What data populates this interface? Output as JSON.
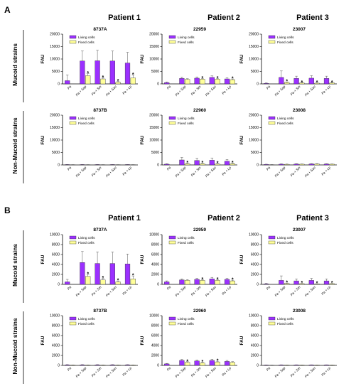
{
  "colors": {
    "living": "#9b30ff",
    "fixed": "#ffff99",
    "axis": "#000000",
    "error": "#555555"
  },
  "legend": {
    "living": "Living cells",
    "fixed": "Fixed cells"
  },
  "ylabel": "FAU",
  "categories": [
    "Pa",
    "Pa + Sap",
    "Pa + Sm",
    "Pa + Sau",
    "Pa + Lp"
  ],
  "patients": [
    "Patient 1",
    "Patient 2",
    "Patient 3"
  ],
  "chart_data": [
    {
      "type": "bar",
      "section": "A",
      "row_label": "Mucoid strains",
      "panels": [
        {
          "title": "8737A",
          "ylim": [
            0,
            20000
          ],
          "yticks": [
            0,
            5000,
            10000,
            15000,
            20000
          ],
          "series": [
            {
              "name": "Living cells",
              "values": [
                1300,
                9200,
                9300,
                9200,
                8400
              ],
              "errors": [
                2300,
                4000,
                4200,
                4000,
                4300
              ]
            },
            {
              "name": "Fixed cells",
              "values": [
                0,
                3300,
                2000,
                700,
                2400
              ],
              "errors": [
                0,
                800,
                500,
                300,
                1200
              ]
            }
          ],
          "stars": [
            false,
            true,
            true,
            true,
            true
          ]
        },
        {
          "title": "22959",
          "ylim": [
            0,
            20000
          ],
          "yticks": [
            0,
            5000,
            10000,
            15000,
            20000
          ],
          "series": [
            {
              "name": "Living cells",
              "values": [
                500,
                2200,
                2300,
                2600,
                2000
              ],
              "errors": [
                300,
                500,
                500,
                600,
                500
              ]
            },
            {
              "name": "Fixed cells",
              "values": [
                0,
                1800,
                1900,
                1900,
                1700
              ],
              "errors": [
                0,
                300,
                300,
                300,
                300
              ]
            }
          ],
          "stars": [
            false,
            false,
            true,
            true,
            true
          ]
        },
        {
          "title": "23007",
          "ylim": [
            0,
            20000
          ],
          "yticks": [
            0,
            5000,
            10000,
            15000,
            20000
          ],
          "series": [
            {
              "name": "Living cells",
              "values": [
                200,
                2600,
                2200,
                2300,
                2200
              ],
              "errors": [
                200,
                2600,
                900,
                1000,
                900
              ]
            },
            {
              "name": "Fixed cells",
              "values": [
                0,
                600,
                400,
                300,
                400
              ],
              "errors": [
                0,
                200,
                100,
                100,
                100
              ]
            }
          ],
          "stars": [
            false,
            true,
            true,
            true,
            true
          ]
        }
      ]
    },
    {
      "type": "bar",
      "section": "A",
      "row_label": "Non-Mucoid strains",
      "panels": [
        {
          "title": "8737B",
          "ylim": [
            0,
            20000
          ],
          "yticks": [
            0,
            5000,
            10000,
            15000,
            20000
          ],
          "series": [
            {
              "name": "Living cells",
              "values": [
                150,
                150,
                150,
                150,
                150
              ],
              "errors": [
                50,
                50,
                50,
                50,
                50
              ]
            },
            {
              "name": "Fixed cells",
              "values": [
                100,
                100,
                100,
                100,
                100
              ],
              "errors": [
                30,
                30,
                30,
                30,
                30
              ]
            }
          ],
          "stars": [
            false,
            false,
            false,
            false,
            false
          ]
        },
        {
          "title": "22960",
          "ylim": [
            0,
            20000
          ],
          "yticks": [
            0,
            5000,
            10000,
            15000,
            20000
          ],
          "series": [
            {
              "name": "Living cells",
              "values": [
                300,
                2000,
                1800,
                1900,
                1500
              ],
              "errors": [
                200,
                1000,
                900,
                900,
                700
              ]
            },
            {
              "name": "Fixed cells",
              "values": [
                0,
                500,
                500,
                400,
                500
              ],
              "errors": [
                0,
                200,
                200,
                200,
                200
              ]
            }
          ],
          "stars": [
            false,
            true,
            true,
            true,
            true
          ]
        },
        {
          "title": "23008",
          "ylim": [
            0,
            20000
          ],
          "yticks": [
            0,
            5000,
            10000,
            15000,
            20000
          ],
          "series": [
            {
              "name": "Living cells",
              "values": [
                200,
                300,
                350,
                400,
                350
              ],
              "errors": [
                100,
                150,
                150,
                150,
                150
              ]
            },
            {
              "name": "Fixed cells",
              "values": [
                100,
                250,
                300,
                400,
                300
              ],
              "errors": [
                50,
                100,
                100,
                150,
                100
              ]
            }
          ],
          "stars": [
            false,
            false,
            false,
            false,
            false
          ]
        }
      ]
    },
    {
      "type": "bar",
      "section": "B",
      "row_label": "Mucoid strains",
      "panels": [
        {
          "title": "8737A",
          "ylim": [
            0,
            10000
          ],
          "yticks": [
            0,
            2000,
            4000,
            6000,
            8000,
            10000
          ],
          "series": [
            {
              "name": "Living cells",
              "values": [
                500,
                4400,
                4200,
                4200,
                4100
              ],
              "errors": [
                500,
                2200,
                2300,
                2300,
                2000
              ]
            },
            {
              "name": "Fixed cells",
              "values": [
                0,
                1600,
                900,
                500,
                1100
              ],
              "errors": [
                0,
                400,
                300,
                200,
                600
              ]
            }
          ],
          "stars": [
            false,
            true,
            true,
            true,
            true
          ]
        },
        {
          "title": "22959",
          "ylim": [
            0,
            10000
          ],
          "yticks": [
            0,
            2000,
            4000,
            6000,
            8000,
            10000
          ],
          "series": [
            {
              "name": "Living cells",
              "values": [
                500,
                900,
                1000,
                1100,
                1000
              ],
              "errors": [
                200,
                200,
                200,
                300,
                200
              ]
            },
            {
              "name": "Fixed cells",
              "values": [
                0,
                800,
                800,
                800,
                700
              ],
              "errors": [
                0,
                150,
                150,
                150,
                150
              ]
            }
          ],
          "stars": [
            false,
            false,
            true,
            true,
            true
          ]
        },
        {
          "title": "23007",
          "ylim": [
            0,
            10000
          ],
          "yticks": [
            0,
            2000,
            4000,
            6000,
            8000,
            10000
          ],
          "series": [
            {
              "name": "Living cells",
              "values": [
                100,
                800,
                700,
                800,
                700
              ],
              "errors": [
                100,
                900,
                400,
                400,
                400
              ]
            },
            {
              "name": "Fixed cells",
              "values": [
                0,
                200,
                150,
                100,
                150
              ],
              "errors": [
                0,
                80,
                50,
                50,
                50
              ]
            }
          ],
          "stars": [
            false,
            true,
            true,
            true,
            true
          ]
        }
      ]
    },
    {
      "type": "bar",
      "section": "B",
      "row_label": "Non-Mucoid strains",
      "panels": [
        {
          "title": "8737B",
          "ylim": [
            0,
            10000
          ],
          "yticks": [
            0,
            2000,
            4000,
            6000,
            8000,
            10000
          ],
          "series": [
            {
              "name": "Living cells",
              "values": [
                120,
                120,
                120,
                120,
                120
              ],
              "errors": [
                40,
                40,
                40,
                40,
                40
              ]
            },
            {
              "name": "Fixed cells",
              "values": [
                80,
                80,
                80,
                80,
                80
              ],
              "errors": [
                30,
                30,
                30,
                30,
                30
              ]
            }
          ],
          "stars": [
            false,
            false,
            false,
            false,
            false
          ]
        },
        {
          "title": "22960",
          "ylim": [
            0,
            10000
          ],
          "yticks": [
            0,
            2000,
            4000,
            6000,
            8000,
            10000
          ],
          "series": [
            {
              "name": "Living cells",
              "values": [
                300,
                1000,
                900,
                1000,
                800
              ],
              "errors": [
                100,
                200,
                200,
                250,
                200
              ]
            },
            {
              "name": "Fixed cells",
              "values": [
                0,
                600,
                500,
                700,
                600
              ],
              "errors": [
                0,
                150,
                150,
                150,
                150
              ]
            }
          ],
          "stars": [
            false,
            true,
            true,
            true,
            false
          ]
        },
        {
          "title": "23008",
          "ylim": [
            0,
            10000
          ],
          "yticks": [
            0,
            2000,
            4000,
            6000,
            8000,
            10000
          ],
          "series": [
            {
              "name": "Living cells",
              "values": [
                80,
                100,
                100,
                100,
                100
              ],
              "errors": [
                30,
                30,
                30,
                30,
                30
              ]
            },
            {
              "name": "Fixed cells",
              "values": [
                50,
                80,
                80,
                80,
                80
              ],
              "errors": [
                20,
                20,
                20,
                20,
                20
              ]
            }
          ],
          "stars": [
            false,
            false,
            false,
            false,
            false
          ]
        }
      ]
    }
  ]
}
